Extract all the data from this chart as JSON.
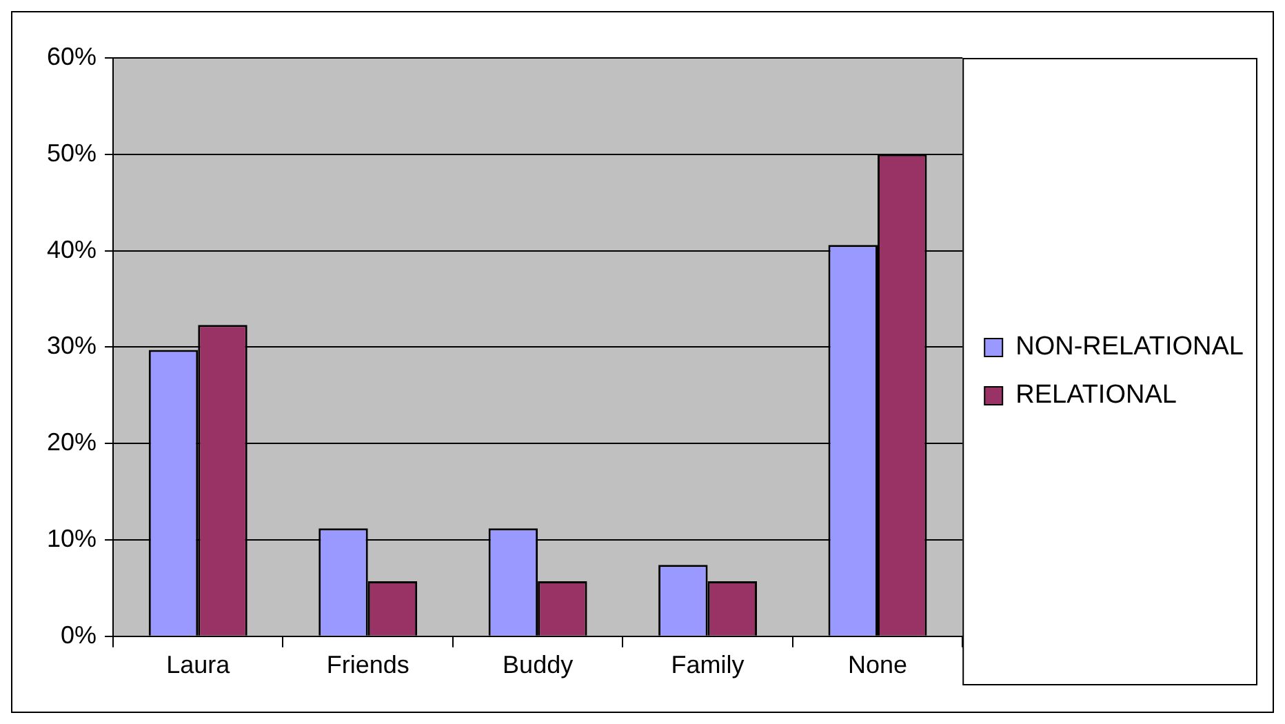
{
  "chart_data": {
    "type": "bar",
    "categories": [
      "Laura",
      "Friends",
      "Buddy",
      "Family",
      "None"
    ],
    "series": [
      {
        "name": "NON-RELATIONAL",
        "color": "#9999ff",
        "values": [
          29.7,
          11.2,
          11.2,
          7.4,
          40.6
        ]
      },
      {
        "name": "RELATIONAL",
        "color": "#993366",
        "values": [
          32.3,
          5.7,
          5.7,
          5.7,
          50
        ]
      }
    ],
    "ylim": [
      0,
      60
    ],
    "yticks": [
      {
        "value": 0,
        "label": "0%"
      },
      {
        "value": 10,
        "label": "10%"
      },
      {
        "value": 20,
        "label": "20%"
      },
      {
        "value": 30,
        "label": "30%"
      },
      {
        "value": 40,
        "label": "40%"
      },
      {
        "value": 50,
        "label": "50%"
      },
      {
        "value": 60,
        "label": "60%"
      }
    ],
    "grid": "y",
    "legend": "right"
  }
}
